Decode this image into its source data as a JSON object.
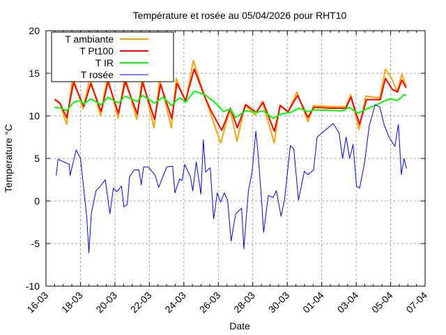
{
  "chart_data": {
    "type": "line",
    "title": "Température et rosée au 05/04/2026 pour RHT10",
    "xlabel": "Date",
    "ylabel": "Temperature °C",
    "x_unit": "days since 16-03",
    "xlim": [
      0,
      22
    ],
    "ylim": [
      -10,
      20
    ],
    "yticks": [
      -10,
      -5,
      0,
      5,
      10,
      15,
      20
    ],
    "xtick_labels": [
      "16-03",
      "18-03",
      "20-03",
      "22-03",
      "24-03",
      "26-03",
      "28-03",
      "30-03",
      "01-04",
      "03-04",
      "05-04",
      "07-04"
    ],
    "grid": true,
    "legend_position": "top-left",
    "series": [
      {
        "name": "T ambiante",
        "color": "#ffa500",
        "points": [
          [
            0.5,
            12.0
          ],
          [
            0.8,
            11.5
          ],
          [
            1.2,
            9.0
          ],
          [
            1.55,
            14.6
          ],
          [
            2.16,
            10.8
          ],
          [
            2.56,
            14.5
          ],
          [
            3.17,
            10.0
          ],
          [
            3.57,
            14.7
          ],
          [
            4.18,
            9.7
          ],
          [
            4.58,
            14.7
          ],
          [
            5.26,
            9.6
          ],
          [
            5.59,
            14.5
          ],
          [
            6.27,
            8.6
          ],
          [
            6.6,
            14.3
          ],
          [
            7.28,
            8.6
          ],
          [
            7.56,
            14.4
          ],
          [
            8.11,
            11.6
          ],
          [
            8.55,
            16.5
          ],
          [
            9.19,
            12.4
          ],
          [
            9.6,
            10.0
          ],
          [
            10.14,
            6.8
          ],
          [
            10.68,
            10.8
          ],
          [
            11.08,
            7.0
          ],
          [
            11.55,
            11.3
          ],
          [
            12.16,
            10.1
          ],
          [
            12.56,
            11.7
          ],
          [
            13.24,
            6.8
          ],
          [
            13.57,
            11.3
          ],
          [
            14.04,
            10.4
          ],
          [
            14.56,
            12.8
          ],
          [
            15.2,
            9.3
          ],
          [
            15.53,
            11.2
          ],
          [
            16.5,
            11.1
          ],
          [
            17.4,
            11.1
          ],
          [
            17.68,
            12.5
          ],
          [
            18.16,
            8.4
          ],
          [
            18.56,
            12.3
          ],
          [
            19.37,
            12.1
          ],
          [
            19.7,
            15.5
          ],
          [
            20.11,
            14.2
          ],
          [
            20.38,
            12.8
          ],
          [
            20.65,
            14.9
          ],
          [
            20.9,
            13.5
          ]
        ]
      },
      {
        "name": "T Pt100",
        "color": "#ff0000",
        "points": [
          [
            0.5,
            11.9
          ],
          [
            0.8,
            11.5
          ],
          [
            1.2,
            9.8
          ],
          [
            1.6,
            13.9
          ],
          [
            2.2,
            11.1
          ],
          [
            2.6,
            13.8
          ],
          [
            3.2,
            10.5
          ],
          [
            3.6,
            14.0
          ],
          [
            4.2,
            10.3
          ],
          [
            4.6,
            14.0
          ],
          [
            5.3,
            10.2
          ],
          [
            5.6,
            13.9
          ],
          [
            6.3,
            9.6
          ],
          [
            6.65,
            13.7
          ],
          [
            7.3,
            9.7
          ],
          [
            7.6,
            13.8
          ],
          [
            8.1,
            11.8
          ],
          [
            8.6,
            15.5
          ],
          [
            9.2,
            12.3
          ],
          [
            9.6,
            10.5
          ],
          [
            10.2,
            8.3
          ],
          [
            10.7,
            10.9
          ],
          [
            11.1,
            8.6
          ],
          [
            11.6,
            11.3
          ],
          [
            12.2,
            10.4
          ],
          [
            12.6,
            11.6
          ],
          [
            13.25,
            8.2
          ],
          [
            13.6,
            11.2
          ],
          [
            14.05,
            10.5
          ],
          [
            14.6,
            12.4
          ],
          [
            15.2,
            9.8
          ],
          [
            15.55,
            11.0
          ],
          [
            16.5,
            10.9
          ],
          [
            17.4,
            10.9
          ],
          [
            17.7,
            12.2
          ],
          [
            18.2,
            9.0
          ],
          [
            18.6,
            11.9
          ],
          [
            19.4,
            11.9
          ],
          [
            19.7,
            14.4
          ],
          [
            20.1,
            13.1
          ],
          [
            20.4,
            12.8
          ],
          [
            20.65,
            14.2
          ],
          [
            20.9,
            13.3
          ]
        ]
      },
      {
        "name": "T IR",
        "color": "#00ff00",
        "points": [
          [
            0.5,
            11.0
          ],
          [
            0.9,
            10.9
          ],
          [
            1.2,
            10.6
          ],
          [
            1.6,
            11.6
          ],
          [
            2.0,
            11.8
          ],
          [
            2.2,
            11.4
          ],
          [
            2.6,
            12.0
          ],
          [
            3.2,
            11.3
          ],
          [
            3.6,
            12.2
          ],
          [
            4.2,
            11.5
          ],
          [
            4.6,
            12.3
          ],
          [
            5.3,
            11.7
          ],
          [
            5.6,
            12.4
          ],
          [
            6.3,
            11.5
          ],
          [
            6.8,
            12.2
          ],
          [
            7.3,
            11.2
          ],
          [
            7.6,
            11.9
          ],
          [
            7.8,
            12.1
          ],
          [
            8.1,
            11.6
          ],
          [
            8.6,
            12.9
          ],
          [
            9.2,
            12.5
          ],
          [
            9.6,
            11.9
          ],
          [
            10.0,
            11.2
          ],
          [
            10.3,
            10.5
          ],
          [
            10.7,
            10.8
          ],
          [
            11.0,
            9.8
          ],
          [
            11.6,
            10.6
          ],
          [
            12.2,
            10.4
          ],
          [
            12.6,
            10.6
          ],
          [
            13.2,
            9.7
          ],
          [
            13.6,
            10.2
          ],
          [
            14.2,
            10.4
          ],
          [
            14.7,
            10.9
          ],
          [
            15.2,
            10.5
          ],
          [
            15.6,
            10.7
          ],
          [
            17.2,
            10.6
          ],
          [
            17.6,
            11.0
          ],
          [
            18.1,
            10.3
          ],
          [
            18.6,
            10.8
          ],
          [
            19.2,
            11.3
          ],
          [
            19.7,
            11.8
          ],
          [
            20.0,
            12.0
          ],
          [
            20.4,
            11.8
          ],
          [
            20.8,
            12.5
          ],
          [
            20.9,
            12.4
          ]
        ]
      },
      {
        "name": "T rosée",
        "color": "#0000ff",
        "points": [
          [
            0.59,
            3.0
          ],
          [
            0.7,
            4.9
          ],
          [
            1.35,
            4.3
          ],
          [
            1.4,
            3.0
          ],
          [
            1.75,
            6.0
          ],
          [
            2.0,
            5.0
          ],
          [
            2.36,
            -1.8
          ],
          [
            2.49,
            -6.1
          ],
          [
            2.63,
            -1.5
          ],
          [
            2.9,
            1.2
          ],
          [
            3.1,
            1.6
          ],
          [
            3.44,
            2.5
          ],
          [
            3.71,
            -1.5
          ],
          [
            3.91,
            1.5
          ],
          [
            4.11,
            1.1
          ],
          [
            4.38,
            1.75
          ],
          [
            4.52,
            -0.7
          ],
          [
            4.72,
            -0.4
          ],
          [
            4.85,
            2.85
          ],
          [
            5.12,
            3.65
          ],
          [
            5.39,
            3.65
          ],
          [
            5.53,
            1.9
          ],
          [
            5.66,
            4.0
          ],
          [
            5.93,
            4.0
          ],
          [
            6.34,
            3.0
          ],
          [
            6.54,
            1.6
          ],
          [
            7.01,
            4.0
          ],
          [
            7.35,
            4.1
          ],
          [
            7.48,
            0.95
          ],
          [
            7.75,
            2.6
          ],
          [
            7.9,
            2.4
          ],
          [
            8.05,
            4.3
          ],
          [
            8.38,
            2.85
          ],
          [
            8.52,
            1.2
          ],
          [
            8.72,
            4.6
          ],
          [
            8.99,
            0.8
          ],
          [
            9.13,
            7.2
          ],
          [
            9.26,
            3.4
          ],
          [
            9.53,
            3.9
          ],
          [
            9.73,
            -2.1
          ],
          [
            9.94,
            0.95
          ],
          [
            10.14,
            -0.15
          ],
          [
            10.34,
            0.95
          ],
          [
            10.54,
            0.1
          ],
          [
            10.74,
            -4.7
          ],
          [
            11.01,
            -1.5
          ],
          [
            11.35,
            -0.85
          ],
          [
            11.48,
            -5.6
          ],
          [
            11.75,
            1.2
          ],
          [
            11.96,
            3.4
          ],
          [
            12.18,
            8.2
          ],
          [
            12.32,
            5.3
          ],
          [
            12.5,
            0.4
          ],
          [
            12.63,
            -3.7
          ],
          [
            12.9,
            0.65
          ],
          [
            13.17,
            0.4
          ],
          [
            13.37,
            1.2
          ],
          [
            13.64,
            -1.8
          ],
          [
            13.84,
            0.1
          ],
          [
            14.18,
            6.5
          ],
          [
            14.38,
            6.1
          ],
          [
            14.65,
            0.1
          ],
          [
            14.99,
            3.5
          ],
          [
            15.19,
            3.1
          ],
          [
            15.53,
            3.65
          ],
          [
            15.73,
            7.5
          ],
          [
            16.07,
            8.1
          ],
          [
            16.67,
            9.1
          ],
          [
            17.01,
            8.0
          ],
          [
            17.21,
            5.0
          ],
          [
            17.42,
            7.5
          ],
          [
            17.62,
            5.0
          ],
          [
            17.82,
            6.65
          ],
          [
            18.02,
            1.75
          ],
          [
            18.2,
            1.5
          ],
          [
            18.49,
            4.5
          ],
          [
            18.76,
            8.85
          ],
          [
            19.1,
            11.3
          ],
          [
            19.37,
            11.05
          ],
          [
            19.64,
            8.85
          ],
          [
            19.91,
            7.5
          ],
          [
            20.25,
            6.4
          ],
          [
            20.45,
            9.0
          ],
          [
            20.62,
            3.1
          ],
          [
            20.78,
            5.0
          ],
          [
            20.92,
            3.8
          ]
        ]
      }
    ]
  }
}
